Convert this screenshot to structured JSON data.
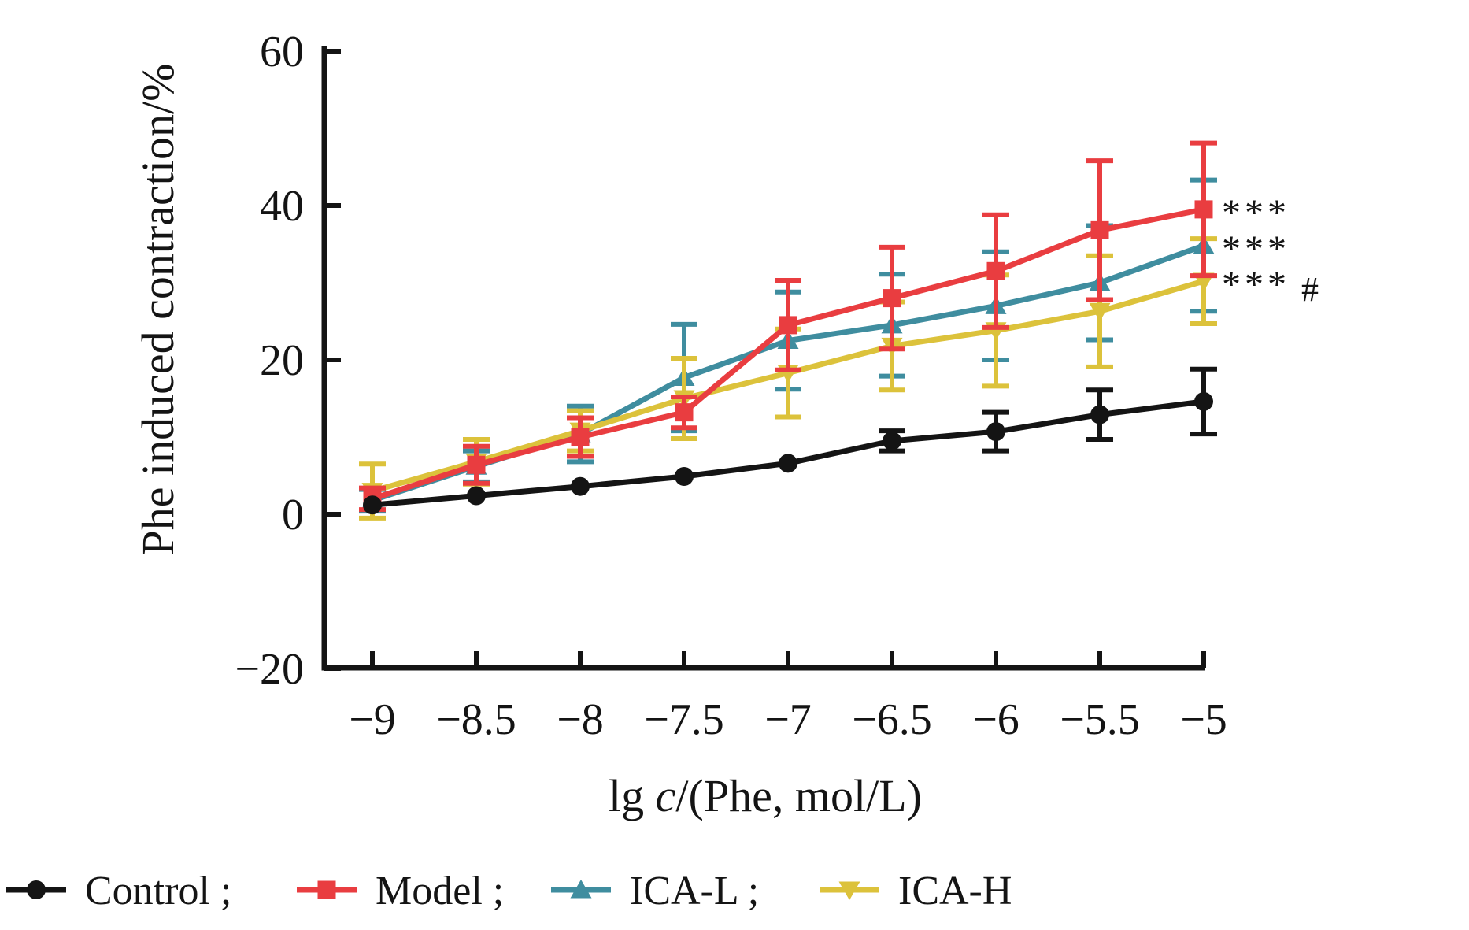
{
  "figure": {
    "y_axis_title": "Phe induced contraction/%",
    "x_axis_title": {
      "pre": "lg ",
      "var": "c",
      "post": "/(Phe, mol/L)"
    },
    "annotations": [
      {
        "stars": "***",
        "suffix": "",
        "series": "Model"
      },
      {
        "stars": "***",
        "suffix": "",
        "series": "ICA-L"
      },
      {
        "stars": "***",
        "suffix": "#",
        "series": "ICA-H"
      }
    ]
  },
  "legend": {
    "items": [
      {
        "label": "Control ;",
        "series": "Control"
      },
      {
        "label": "Model ;",
        "series": "Model"
      },
      {
        "label": "ICA-L ;",
        "series": "ICA-L"
      },
      {
        "label": "ICA-H",
        "series": "ICA-H"
      }
    ]
  },
  "chart_data": {
    "type": "line",
    "title": "",
    "xlabel": "lg c/(Phe, mol/L)",
    "ylabel": "Phe induced contraction/%",
    "xlim": [
      -9,
      -5
    ],
    "ylim": [
      -20,
      60
    ],
    "grid": false,
    "legend_position": "bottom",
    "x": [
      -9,
      -8.5,
      -8,
      -7.5,
      -7,
      -6.5,
      -6,
      -5.5,
      -5
    ],
    "x_tick_labels": [
      "−9",
      "−8.5",
      "−8",
      "−7.5",
      "−7",
      "−6.5",
      "−6",
      "−5.5",
      "−5"
    ],
    "y_ticks": [
      -20,
      0,
      20,
      40,
      60
    ],
    "y_tick_labels": [
      "−20",
      "0",
      "20",
      "40",
      "60"
    ],
    "series": [
      {
        "name": "Control",
        "color": "#141414",
        "marker": "circle",
        "values": [
          1.2,
          2.4,
          3.6,
          4.9,
          6.6,
          9.5,
          10.7,
          12.9,
          14.6
        ],
        "errors": [
          0.6,
          0.7,
          0.8,
          0.8,
          0.9,
          1.3,
          2.5,
          3.2,
          4.2
        ],
        "significance": ""
      },
      {
        "name": "Model",
        "color": "#e93d40",
        "marker": "square",
        "values": [
          2.0,
          6.4,
          10.0,
          13.2,
          24.5,
          28.0,
          31.5,
          36.8,
          39.5
        ],
        "errors": [
          1.4,
          2.4,
          2.5,
          2.0,
          5.8,
          6.6,
          7.3,
          9.0,
          8.6
        ],
        "significance": "***"
      },
      {
        "name": "ICA-L",
        "color": "#3f8d9f",
        "marker": "triangle-up",
        "values": [
          1.8,
          6.2,
          10.4,
          17.7,
          22.5,
          24.5,
          27.0,
          30.0,
          34.8
        ],
        "errors": [
          1.4,
          2.0,
          3.6,
          6.9,
          6.3,
          6.6,
          7.0,
          7.4,
          8.5
        ],
        "significance": "***"
      },
      {
        "name": "ICA-H",
        "color": "#dcc23b",
        "marker": "triangle-down",
        "values": [
          3.0,
          6.8,
          10.8,
          15.0,
          18.3,
          21.8,
          23.8,
          26.3,
          30.2
        ],
        "errors": [
          3.5,
          2.9,
          2.6,
          5.2,
          5.7,
          5.7,
          7.2,
          7.2,
          5.5
        ],
        "significance": "***#"
      }
    ]
  }
}
